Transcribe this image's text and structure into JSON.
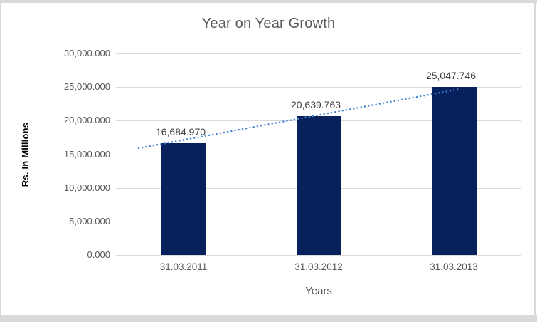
{
  "chart_data": {
    "type": "bar",
    "title": "Year on Year Growth",
    "xlabel": "Years",
    "ylabel": "Rs. In Millions",
    "categories": [
      "31.03.2011",
      "31.03.2012",
      "31.03.2013"
    ],
    "values": [
      16684.97,
      20639.763,
      25047.746
    ],
    "data_labels": [
      "16,684.970",
      "20,639.763",
      "25,047.746"
    ],
    "ylim": [
      0,
      30000
    ],
    "ytick_interval": 5000,
    "ytick_labels_top_to_bottom": [
      "30,000.000",
      "25,000.000",
      "20,000.000",
      "15,000.000",
      "10,000.000",
      "5,000.000",
      "0.000"
    ],
    "grid": true,
    "legend": false,
    "trendline": {
      "type": "linear",
      "style": "dotted",
      "color": "#4384D4"
    },
    "colors": {
      "bar": "#07215D",
      "gridline": "#D9D9D9",
      "frame": "#D9D9D9",
      "title_text": "#595959",
      "tick_text": "#595959",
      "data_label_text": "#404040",
      "y_axis_title_text": "#000000"
    }
  }
}
